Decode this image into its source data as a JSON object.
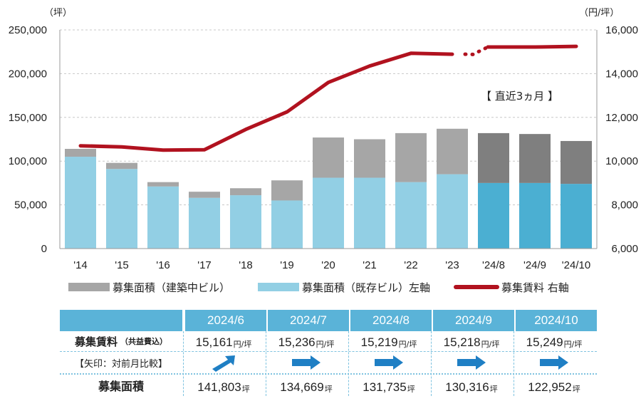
{
  "chart_data": {
    "type": "bar+line",
    "categories": [
      "'14",
      "'15",
      "'16",
      "'17",
      "'18",
      "'19",
      "'20",
      "'21",
      "'22",
      "'23",
      "'24/8",
      "'24/9",
      "'24/10"
    ],
    "series": [
      {
        "name": "募集面積（建築中ビル）",
        "type": "bar-stack-top",
        "values": [
          9000,
          7000,
          5000,
          7000,
          8000,
          23000,
          46000,
          44000,
          56000,
          52000,
          57000,
          56000,
          49000
        ]
      },
      {
        "name": "募集面積（既存ビル）左軸",
        "type": "bar-stack-bottom",
        "values": [
          105000,
          91000,
          71000,
          58000,
          61000,
          55000,
          81000,
          81000,
          76000,
          85000,
          75000,
          75000,
          74000
        ]
      },
      {
        "name": "募集賃料 右軸",
        "type": "line",
        "axis": "right",
        "values": [
          10700,
          10650,
          10500,
          10520,
          11450,
          12250,
          13600,
          14350,
          14930,
          14890,
          15219,
          15218,
          15249
        ],
        "bridge_point": 14880
      }
    ],
    "y_left": {
      "unit": "（坪）",
      "ticks": [
        "0",
        "50,000",
        "100,000",
        "150,000",
        "200,000",
        "250,000"
      ],
      "min": 0,
      "max": 250000
    },
    "y_right": {
      "unit": "（円/坪）",
      "ticks": [
        "6,000",
        "8,000",
        "10,000",
        "12,000",
        "14,000",
        "16,000"
      ],
      "min": 6000,
      "max": 16000
    },
    "grid": "horizontal dashed",
    "annotation": "【 直近3ヵ月 】",
    "colors": {
      "bar_construction": "#a6a6a6",
      "bar_existing": "#92cfe4",
      "bar_construction_recent": "#7f7f7f",
      "bar_existing_recent": "#4bafd2",
      "line": "#b1121f"
    }
  },
  "legend": {
    "construction": "募集面積（建築中ビル）",
    "existing": "募集面積（既存ビル）左軸",
    "rent": "募集賃料 右軸"
  },
  "table": {
    "headers": [
      "2024/6",
      "2024/7",
      "2024/8",
      "2024/9",
      "2024/10"
    ],
    "rent_label": "募集賃料",
    "rent_sub": "（共益費込）",
    "arrow_label": "【矢印：対前月比較】",
    "area_label": "募集面積",
    "rents": [
      "15,161",
      "15,236",
      "15,219",
      "15,218",
      "15,249"
    ],
    "rent_unit": "円/坪",
    "arrows": [
      "up-right",
      "right",
      "right",
      "right",
      "right"
    ],
    "areas": [
      "141,803",
      "134,669",
      "131,735",
      "130,316",
      "122,952"
    ],
    "area_unit": "坪",
    "arrow_color": "#1f7fc4"
  }
}
